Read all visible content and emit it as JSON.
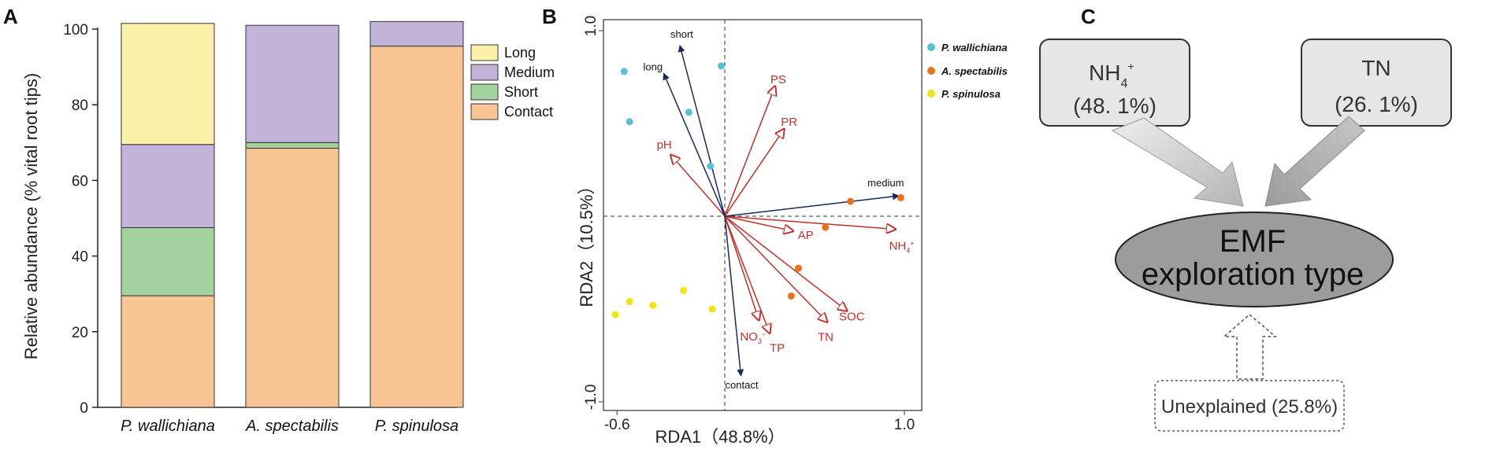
{
  "panels": {
    "a": "A",
    "b": "B",
    "c": "C"
  },
  "colors": {
    "long": "#fbf1a9",
    "medium": "#c2b3d8",
    "short": "#a3d29f",
    "contact": "#f7c594",
    "env_arrow": "#c0302a",
    "expl_arrow": "#1a2a5c",
    "p_wallichiana": "#5bc0d6",
    "a_spectabilis": "#e8731e",
    "p_spinulosa": "#f1e416"
  },
  "chart_data": [
    {
      "type": "bar",
      "stacked": true,
      "title": "",
      "xlabel": "",
      "ylabel": "Relative abundance (% vital root tips)",
      "ylim": [
        0,
        100
      ],
      "yticks": [
        0,
        20,
        40,
        60,
        80,
        100
      ],
      "categories": [
        "P. wallichiana",
        "A. spectabilis",
        "P. spinulosa"
      ],
      "series": [
        {
          "name": "Contact",
          "color_key": "contact",
          "values": [
            29.5,
            68.5,
            95.5
          ]
        },
        {
          "name": "Short",
          "color_key": "short",
          "values": [
            18.0,
            1.5,
            0
          ]
        },
        {
          "name": "Medium",
          "color_key": "medium",
          "values": [
            22.0,
            31.0,
            6.5
          ]
        },
        {
          "name": "Long",
          "color_key": "long",
          "values": [
            32.0,
            0,
            0
          ]
        }
      ],
      "legend": [
        "Long",
        "Medium",
        "Short",
        "Contact"
      ],
      "legend_position": "top-right"
    },
    {
      "type": "scatter",
      "subtype": "rda-biplot",
      "xlabel": "RDA1（48.8%）",
      "ylabel": "RDA2（10.5%）",
      "xlim": [
        -0.65,
        1.02
      ],
      "ylim": [
        -1.05,
        1.02
      ],
      "xtick_labels": [
        {
          "value": -0.6,
          "label": "-0.6"
        },
        {
          "value": 1.0,
          "label": "1.0"
        }
      ],
      "ytick_labels": [
        {
          "value": 1.0,
          "label": "1.0"
        },
        {
          "value": -1.0,
          "label": "-1.0"
        }
      ],
      "groups": [
        {
          "name": "P. wallichiana",
          "color_key": "p_wallichiana",
          "points": [
            [
              -0.56,
              0.78
            ],
            [
              -0.02,
              0.81
            ],
            [
              -0.2,
              0.56
            ],
            [
              -0.53,
              0.51
            ],
            [
              -0.08,
              0.27
            ]
          ]
        },
        {
          "name": "A. spectabilis",
          "color_key": "a_spectabilis",
          "points": [
            [
              0.98,
              0.1
            ],
            [
              0.7,
              0.08
            ],
            [
              0.56,
              -0.06
            ],
            [
              0.41,
              -0.28
            ],
            [
              0.37,
              -0.43
            ]
          ]
        },
        {
          "name": "P. spinulosa",
          "color_key": "p_spinulosa",
          "points": [
            [
              -0.61,
              -0.53
            ],
            [
              -0.53,
              -0.46
            ],
            [
              -0.4,
              -0.48
            ],
            [
              -0.23,
              -0.4
            ],
            [
              -0.07,
              -0.5
            ]
          ]
        }
      ],
      "env_vectors": [
        {
          "name": "PS",
          "x": 0.28,
          "y": 0.7
        },
        {
          "name": "PR",
          "x": 0.33,
          "y": 0.47
        },
        {
          "name": "pH",
          "x": -0.3,
          "y": 0.33
        },
        {
          "name": "AP",
          "x": 0.38,
          "y": -0.08
        },
        {
          "name": "NH4+",
          "x": 0.95,
          "y": -0.07
        },
        {
          "name": "SOC",
          "x": 0.68,
          "y": -0.51
        },
        {
          "name": "TN",
          "x": 0.57,
          "y": -0.57
        },
        {
          "name": "TP",
          "x": 0.25,
          "y": -0.63
        },
        {
          "name": "NO3-",
          "x": 0.19,
          "y": -0.56
        }
      ],
      "explorer_vectors": [
        {
          "name": "short",
          "x": -0.25,
          "y": 0.92
        },
        {
          "name": "long",
          "x": -0.34,
          "y": 0.77
        },
        {
          "name": "medium",
          "x": 0.97,
          "y": 0.11
        },
        {
          "name": "contact",
          "x": 0.09,
          "y": -0.86
        }
      ],
      "legend": [
        "P. wallichiana",
        "A. spectabilis",
        "P. spinulosa"
      ],
      "legend_position": "top-right"
    }
  ],
  "barLegend": {
    "long": "Long",
    "medium": "Medium",
    "short": "Short",
    "contact": "Contact"
  },
  "rdaLegend": {
    "pw": "P. wallichiana",
    "as": "A. spectabilis",
    "ps": "P. spinulosa"
  },
  "panelC": {
    "nh4_name": "NH",
    "nh4_sub": "4",
    "nh4_sup": "+",
    "nh4_value": "(48. 1%)",
    "tn_name": "TN",
    "tn_value": "(26. 1%)",
    "center_line1": "EMF",
    "center_line2": "exploration type",
    "unexplained": "Unexplained (25.8%)"
  }
}
